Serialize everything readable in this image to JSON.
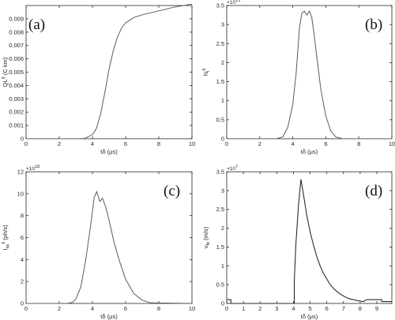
{
  "chart_data": [
    {
      "id": "a",
      "type": "line",
      "panel_label": "(a)",
      "xlabel": "tδ (μs)",
      "ylabel": "QL",
      "ylabel_sup": "δ",
      "ylabel_unit": "(C km)",
      "xlim": [
        0,
        10
      ],
      "ylim": [
        0,
        0.01
      ],
      "xticks": [
        0,
        2,
        4,
        6,
        8,
        10
      ],
      "yticks": [
        0,
        0.001,
        0.002,
        0.003,
        0.004,
        0.005,
        0.006,
        0.007,
        0.008,
        0.009
      ],
      "ytick_labels": [
        "0",
        "0.001",
        "0.002",
        "0.003",
        "0.004",
        "0.005",
        "0.006",
        "0.007",
        "0.008",
        "0.009"
      ],
      "exponent": "",
      "series": [
        {
          "x": [
            0,
            1,
            2,
            3,
            3.5,
            4,
            4.25,
            4.5,
            4.75,
            5,
            5.25,
            5.5,
            5.75,
            6,
            6.25,
            6.5,
            7,
            8,
            9,
            10
          ],
          "y": [
            0,
            0,
            0,
            0,
            1e-05,
            0.0003,
            0.0008,
            0.0019,
            0.0035,
            0.0052,
            0.0066,
            0.0076,
            0.0083,
            0.0087,
            0.0089,
            0.0091,
            0.0093,
            0.0096,
            0.0099,
            0.0101
          ]
        }
      ]
    },
    {
      "id": "b",
      "type": "line",
      "panel_label": "(b)",
      "xlabel": "tδ (μs)",
      "ylabel": "N",
      "ylabel_sub": "l",
      "ylabel_sup": "δ",
      "ylabel_unit": "",
      "xlim": [
        0,
        10
      ],
      "ylim": [
        0,
        3.5
      ],
      "xticks": [
        0,
        2,
        4,
        6,
        8,
        10
      ],
      "yticks": [
        0,
        0.5,
        1,
        1.5,
        2,
        2.5,
        3,
        3.5
      ],
      "ytick_labels": [
        "0",
        "0.5",
        "1",
        "1.5",
        "2",
        "2.5",
        "3",
        "3.5"
      ],
      "exponent": "×10",
      "exponent_power": "15",
      "series": [
        {
          "x": [
            0,
            3,
            3.4,
            3.7,
            4.0,
            4.2,
            4.4,
            4.55,
            4.7,
            4.85,
            5.0,
            5.15,
            5.3,
            5.5,
            5.7,
            6.0,
            6.3,
            6.6,
            7.0,
            10
          ],
          "y": [
            0,
            0,
            0.05,
            0.3,
            0.9,
            1.7,
            2.9,
            3.3,
            3.35,
            3.25,
            3.35,
            3.2,
            2.7,
            2.0,
            1.3,
            0.6,
            0.2,
            0.05,
            0,
            0
          ]
        }
      ]
    },
    {
      "id": "c",
      "type": "line",
      "panel_label": "(c)",
      "xlabel": "tδ (μs)",
      "ylabel": "I",
      "ylabel_sub": "sp",
      "ylabel_sup": "δ",
      "ylabel_unit": "(ph/s)",
      "xlim": [
        0,
        10
      ],
      "ylim": [
        0,
        12
      ],
      "xticks": [
        0,
        2,
        4,
        6,
        8,
        10
      ],
      "yticks": [
        0,
        2,
        4,
        6,
        8,
        10,
        12
      ],
      "ytick_labels": [
        "0",
        "2",
        "4",
        "6",
        "8",
        "10",
        "12"
      ],
      "exponent": "×10",
      "exponent_power": "18",
      "series": [
        {
          "x": [
            0,
            2.5,
            2.8,
            3.0,
            3.3,
            3.6,
            3.9,
            4.1,
            4.25,
            4.45,
            4.6,
            4.8,
            5.0,
            5.3,
            5.6,
            6.0,
            6.5,
            7.0,
            7.5,
            10
          ],
          "y": [
            0,
            0,
            0.1,
            0.4,
            1.5,
            4.0,
            7.2,
            9.6,
            10.2,
            9.3,
            9.6,
            8.8,
            7.6,
            5.6,
            4.0,
            2.2,
            0.9,
            0.3,
            0.05,
            0
          ]
        }
      ]
    },
    {
      "id": "d",
      "type": "line",
      "panel_label": "(d)",
      "xlabel": "tδ (μs)",
      "ylabel": "v",
      "ylabel_sub": "fb",
      "ylabel_sup": "",
      "ylabel_unit": "(m/s)",
      "xlim": [
        0,
        9.9
      ],
      "ylim": [
        0,
        3.5
      ],
      "xticks": [
        0,
        1,
        2,
        3,
        4,
        5,
        6,
        7,
        8,
        9
      ],
      "yticks": [
        0,
        0.5,
        1,
        1.5,
        2,
        2.5,
        3,
        3.5
      ],
      "ytick_labels": [
        "0",
        "0.5",
        "1",
        "1.5",
        "2",
        "2.5",
        "3",
        "3.5"
      ],
      "exponent": "×10",
      "exponent_power": "7",
      "series": [
        {
          "x": [
            0,
            0.25,
            0.25,
            4.05,
            4.05,
            4.15,
            4.3,
            4.45,
            4.6,
            4.8,
            5.0,
            5.2,
            5.4,
            5.6,
            5.8,
            6.0,
            6.2,
            6.4,
            6.6,
            6.8,
            7.0,
            7.2,
            7.4,
            7.6,
            7.8,
            8.0,
            8.2,
            8.4,
            8.6,
            9.0,
            9.3,
            9.3,
            9.9
          ],
          "y": [
            0.1,
            0.1,
            0,
            0,
            0.6,
            1.6,
            2.6,
            3.3,
            2.9,
            2.35,
            1.9,
            1.55,
            1.25,
            1.0,
            0.8,
            0.65,
            0.5,
            0.4,
            0.32,
            0.25,
            0.2,
            0.15,
            0.12,
            0.1,
            0.08,
            0.06,
            0.05,
            0.1,
            0.1,
            0.1,
            0.1,
            0.05,
            0.05
          ]
        }
      ]
    }
  ]
}
